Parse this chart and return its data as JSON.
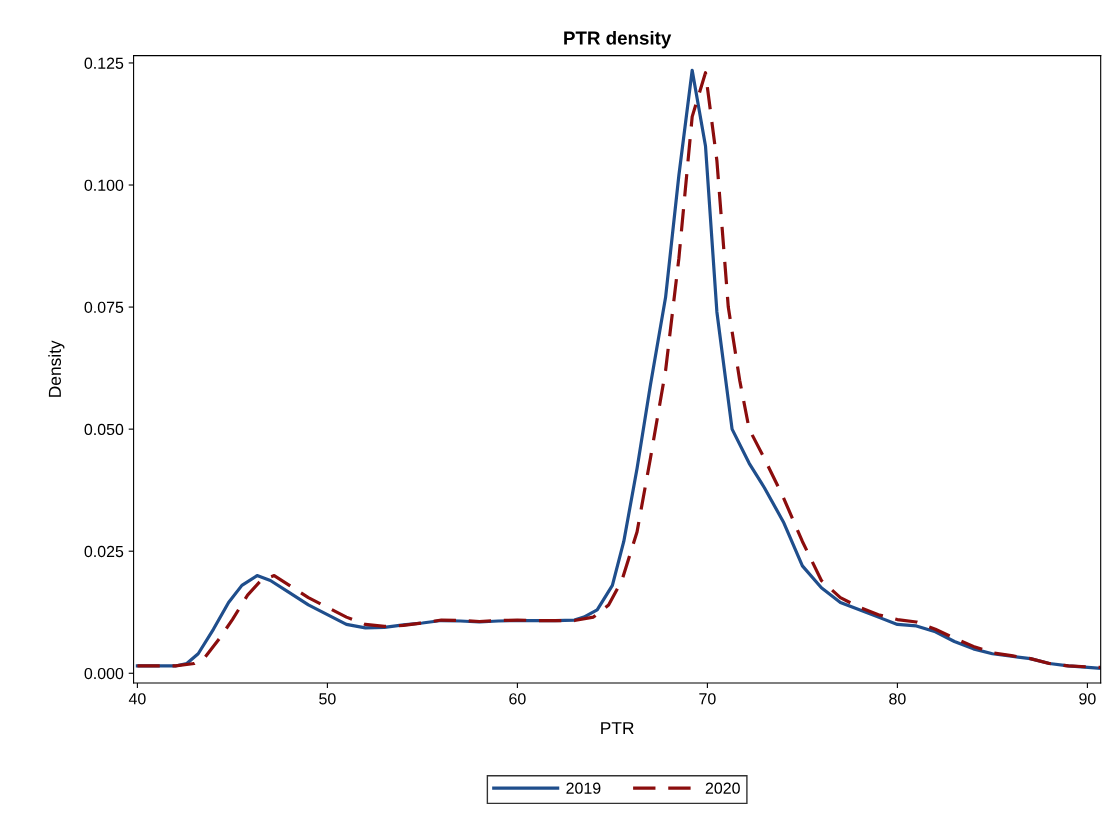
{
  "chart_data": {
    "type": "line",
    "title": "PTR density",
    "xlabel": "PTR",
    "ylabel": "Density",
    "xlim": [
      39.8,
      90.7
    ],
    "xticks": [
      40,
      50,
      60,
      70,
      80,
      90
    ],
    "ylim": [
      -0.002,
      0.1265
    ],
    "yticks": [
      {
        "value": 0,
        "label": "0.000"
      },
      {
        "value": 0.025,
        "label": "0.025"
      },
      {
        "value": 0.05,
        "label": "0.050"
      },
      {
        "value": 0.075,
        "label": "0.075"
      },
      {
        "value": 0.1,
        "label": "0.100"
      },
      {
        "value": 0.125,
        "label": "0.125"
      }
    ],
    "grid": false,
    "legend": "bottom",
    "series": [
      {
        "name": "2019",
        "color": "#1f4e8c",
        "line_style": "solid",
        "x": [
          40,
          42,
          42.6,
          43.2,
          44,
          44.8,
          45.5,
          46.3,
          47,
          48,
          49,
          50,
          51,
          52,
          53,
          54,
          55,
          56,
          57,
          58,
          59,
          60,
          61,
          62,
          63,
          63.5,
          64.2,
          65,
          65.6,
          66.3,
          67,
          67.8,
          68.5,
          69.2,
          69.9,
          70.5,
          71.3,
          72.2,
          73,
          74,
          75,
          76,
          77,
          78,
          79,
          80,
          81,
          82,
          83,
          84,
          85,
          86,
          87,
          88,
          89,
          90.7
        ],
        "values": [
          0.0015,
          0.0015,
          0.002,
          0.004,
          0.009,
          0.0145,
          0.018,
          0.02,
          0.019,
          0.0165,
          0.014,
          0.012,
          0.01,
          0.0093,
          0.0094,
          0.0099,
          0.0103,
          0.0108,
          0.0107,
          0.0105,
          0.0107,
          0.0108,
          0.0108,
          0.0108,
          0.0109,
          0.0115,
          0.013,
          0.018,
          0.027,
          0.042,
          0.059,
          0.077,
          0.102,
          0.1235,
          0.108,
          0.074,
          0.05,
          0.043,
          0.038,
          0.031,
          0.022,
          0.0175,
          0.0145,
          0.013,
          0.0115,
          0.01,
          0.0097,
          0.0085,
          0.0065,
          0.005,
          0.004,
          0.0035,
          0.003,
          0.002,
          0.0015,
          0.001
        ]
      },
      {
        "name": "2020",
        "color": "#8b0d0d",
        "line_style": "dashed",
        "x": [
          40,
          42,
          43,
          43.5,
          44.3,
          45,
          45.8,
          46.5,
          47.2,
          48,
          49,
          50,
          51,
          52,
          53,
          54,
          55,
          56,
          57,
          58,
          59,
          60,
          61,
          62,
          63,
          64,
          64.8,
          65.5,
          66.3,
          67,
          67.8,
          68.5,
          69.2,
          69.9,
          70.5,
          71.1,
          71.7,
          72.2,
          73,
          74,
          75,
          76,
          77,
          78,
          79,
          80,
          81,
          82,
          83,
          84,
          85,
          86,
          87,
          88,
          89,
          90.7
        ],
        "values": [
          0.0015,
          0.0015,
          0.002,
          0.003,
          0.007,
          0.011,
          0.016,
          0.019,
          0.02,
          0.018,
          0.0155,
          0.0135,
          0.0115,
          0.01,
          0.0096,
          0.0098,
          0.0103,
          0.0109,
          0.0108,
          0.0106,
          0.0108,
          0.0109,
          0.0108,
          0.0108,
          0.0108,
          0.0115,
          0.014,
          0.019,
          0.029,
          0.044,
          0.062,
          0.085,
          0.114,
          0.123,
          0.105,
          0.075,
          0.06,
          0.05,
          0.044,
          0.036,
          0.027,
          0.019,
          0.0155,
          0.0135,
          0.012,
          0.011,
          0.0105,
          0.009,
          0.0072,
          0.0055,
          0.0042,
          0.0036,
          0.003,
          0.002,
          0.0015,
          0.0012
        ]
      }
    ]
  }
}
